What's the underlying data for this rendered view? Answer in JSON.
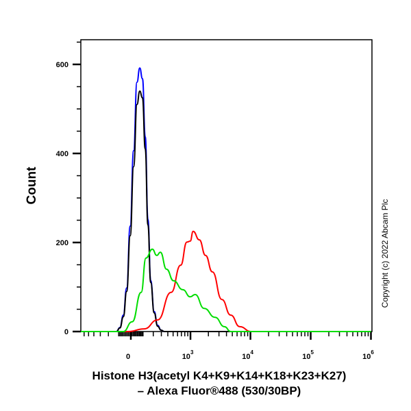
{
  "chart_data": {
    "type": "line",
    "title": "",
    "xlabel_line1": "Histone H3(acetyl K4+K9+K14+K18+K23+K27)",
    "xlabel_line2": "– Alexa Fluor®488 (530/30BP)",
    "ylabel": "Count",
    "x_scale": "biexponential",
    "xlim": [
      -683,
      1000000
    ],
    "ylim": [
      0,
      650
    ],
    "x_ticks": [
      {
        "value": 0,
        "base": "0",
        "exp": ""
      },
      {
        "value": 1000,
        "base": "10",
        "exp": "3"
      },
      {
        "value": 10000,
        "base": "10",
        "exp": "4"
      },
      {
        "value": 100000,
        "base": "10",
        "exp": "5"
      },
      {
        "value": 1000000,
        "base": "10",
        "exp": "6"
      }
    ],
    "y_ticks": [
      {
        "value": 0,
        "label": "0"
      },
      {
        "value": 200,
        "label": "200"
      },
      {
        "value": 400,
        "label": "400"
      },
      {
        "value": 600,
        "label": "600"
      }
    ],
    "grid": false,
    "legend": "none",
    "copyright": "Copyright (c) 2022 Abcam Plc",
    "series": [
      {
        "color": "#0000ff",
        "points": [
          [
            -120,
            0
          ],
          [
            -89,
            9
          ],
          [
            -60,
            37
          ],
          [
            -33,
            98
          ],
          [
            -5,
            237
          ],
          [
            22,
            406
          ],
          [
            49,
            560
          ],
          [
            72,
            592
          ],
          [
            95,
            568
          ],
          [
            120,
            437
          ],
          [
            145,
            252
          ],
          [
            173,
            114
          ],
          [
            210,
            45
          ],
          [
            251,
            14
          ],
          [
            296,
            3
          ],
          [
            345,
            0
          ],
          [
            1000000,
            0
          ]
        ]
      },
      {
        "color": "#000000",
        "points": [
          [
            -120,
            0
          ],
          [
            -89,
            8
          ],
          [
            -60,
            33
          ],
          [
            -33,
            90
          ],
          [
            -5,
            215
          ],
          [
            22,
            370
          ],
          [
            49,
            510
          ],
          [
            72,
            540
          ],
          [
            95,
            525
          ],
          [
            120,
            410
          ],
          [
            145,
            240
          ],
          [
            173,
            110
          ],
          [
            210,
            42
          ],
          [
            251,
            12
          ],
          [
            296,
            3
          ],
          [
            345,
            0
          ],
          [
            1000000,
            0
          ]
        ]
      },
      {
        "color": "#ff0000",
        "points": [
          [
            -683,
            0
          ],
          [
            -22,
            0
          ],
          [
            110,
            6
          ],
          [
            251,
            26
          ],
          [
            461,
            88
          ],
          [
            680,
            149
          ],
          [
            870,
            201
          ],
          [
            990,
            203
          ],
          [
            1110,
            225
          ],
          [
            1410,
            206
          ],
          [
            1791,
            171
          ],
          [
            2329,
            134
          ],
          [
            3350,
            72
          ],
          [
            4700,
            37
          ],
          [
            6645,
            11
          ],
          [
            10200,
            0
          ],
          [
            1000000,
            0
          ]
        ]
      },
      {
        "color": "#00dd00",
        "points": [
          [
            -683,
            0
          ],
          [
            -60,
            0
          ],
          [
            11,
            22
          ],
          [
            84,
            88
          ],
          [
            126,
            165
          ],
          [
            190,
            185
          ],
          [
            240,
            171
          ],
          [
            287,
            178
          ],
          [
            378,
            140
          ],
          [
            510,
            114
          ],
          [
            740,
            94
          ],
          [
            990,
            78
          ],
          [
            1200,
            83
          ],
          [
            1700,
            52
          ],
          [
            2580,
            32
          ],
          [
            3700,
            11
          ],
          [
            4700,
            0
          ],
          [
            1000000,
            0
          ]
        ]
      }
    ]
  }
}
